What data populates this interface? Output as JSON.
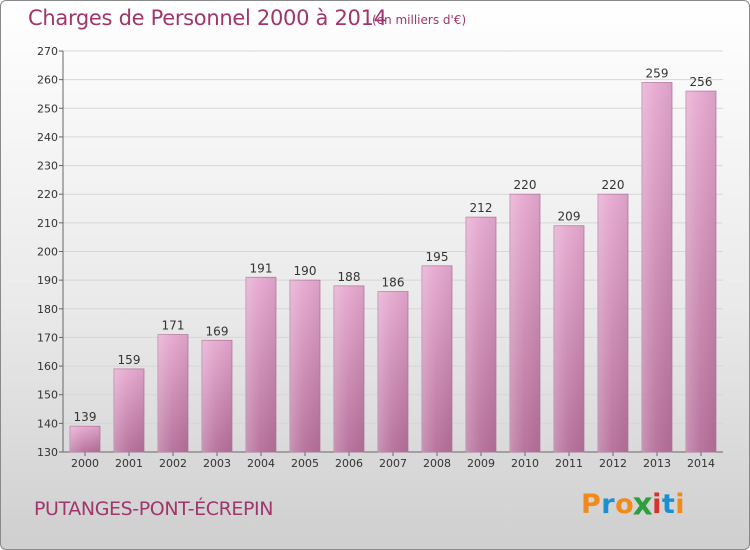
{
  "title": "Charges de Personnel 2000 à 2014",
  "subtitle": "(en milliers d'€)",
  "commune": "PUTANGES-PONT-ÉCREPIN",
  "logo": {
    "letters": [
      "P",
      "r",
      "o",
      "x",
      "i",
      "t",
      "i"
    ],
    "colors": [
      "#f08a1c",
      "#1a8fd1",
      "#f08a1c",
      "#2e9e3e",
      "#d6312b",
      "#1a8fd1",
      "#f08a1c"
    ]
  },
  "colors": {
    "bar_top": "#e6a8cf",
    "bar_bottom": "#b56f9a",
    "text_accent": "#a0366c"
  },
  "chart_data": {
    "type": "bar",
    "categories": [
      "2000",
      "2001",
      "2002",
      "2003",
      "2004",
      "2005",
      "2006",
      "2007",
      "2008",
      "2009",
      "2010",
      "2011",
      "2012",
      "2013",
      "2014"
    ],
    "values": [
      139,
      159,
      171,
      169,
      191,
      190,
      188,
      186,
      195,
      212,
      220,
      209,
      220,
      259,
      256
    ],
    "title": "Charges de Personnel 2000 à 2014",
    "ylim": [
      130,
      270
    ],
    "yticks": [
      130,
      140,
      150,
      160,
      170,
      180,
      190,
      200,
      210,
      220,
      230,
      240,
      250,
      260,
      270
    ],
    "grid": true
  }
}
